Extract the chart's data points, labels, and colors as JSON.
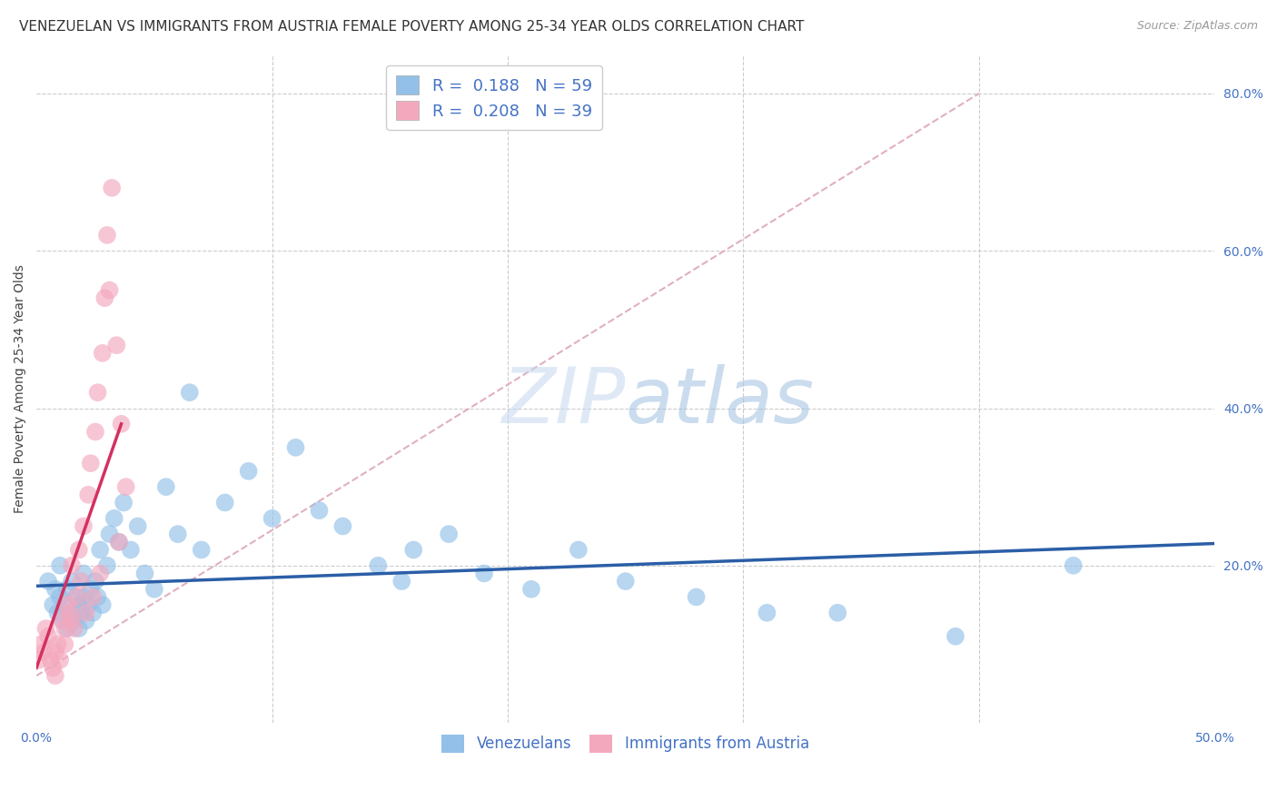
{
  "title": "VENEZUELAN VS IMMIGRANTS FROM AUSTRIA FEMALE POVERTY AMONG 25-34 YEAR OLDS CORRELATION CHART",
  "source": "Source: ZipAtlas.com",
  "ylabel": "Female Poverty Among 25-34 Year Olds",
  "xlim": [
    0.0,
    0.5
  ],
  "ylim": [
    0.0,
    0.85
  ],
  "y_ticks_right": [
    0.0,
    0.2,
    0.4,
    0.6,
    0.8
  ],
  "y_tick_labels_right": [
    "",
    "20.0%",
    "40.0%",
    "60.0%",
    "80.0%"
  ],
  "blue_R": "0.188",
  "blue_N": "59",
  "pink_R": "0.208",
  "pink_N": "39",
  "blue_color": "#92C0E8",
  "pink_color": "#F4A8BE",
  "blue_line_color": "#2B5EA7",
  "pink_line_color": "#D43060",
  "pink_dash_color": "#E8A0B8",
  "blue_scatter_x": [
    0.005,
    0.007,
    0.008,
    0.009,
    0.01,
    0.01,
    0.011,
    0.012,
    0.013,
    0.013,
    0.015,
    0.015,
    0.016,
    0.017,
    0.018,
    0.018,
    0.019,
    0.02,
    0.02,
    0.021,
    0.022,
    0.023,
    0.024,
    0.025,
    0.026,
    0.027,
    0.028,
    0.03,
    0.031,
    0.033,
    0.035,
    0.037,
    0.04,
    0.043,
    0.046,
    0.05,
    0.055,
    0.06,
    0.065,
    0.07,
    0.08,
    0.09,
    0.1,
    0.11,
    0.12,
    0.13,
    0.145,
    0.155,
    0.16,
    0.175,
    0.19,
    0.21,
    0.23,
    0.25,
    0.28,
    0.31,
    0.34,
    0.39,
    0.44
  ],
  "blue_scatter_y": [
    0.18,
    0.15,
    0.17,
    0.14,
    0.16,
    0.2,
    0.13,
    0.15,
    0.17,
    0.12,
    0.14,
    0.18,
    0.13,
    0.16,
    0.12,
    0.15,
    0.14,
    0.16,
    0.19,
    0.13,
    0.15,
    0.17,
    0.14,
    0.18,
    0.16,
    0.22,
    0.15,
    0.2,
    0.24,
    0.26,
    0.23,
    0.28,
    0.22,
    0.25,
    0.19,
    0.17,
    0.3,
    0.24,
    0.42,
    0.22,
    0.28,
    0.32,
    0.26,
    0.35,
    0.27,
    0.25,
    0.2,
    0.18,
    0.22,
    0.24,
    0.19,
    0.17,
    0.22,
    0.18,
    0.16,
    0.14,
    0.14,
    0.11,
    0.2
  ],
  "pink_scatter_x": [
    0.001,
    0.002,
    0.003,
    0.004,
    0.005,
    0.006,
    0.007,
    0.008,
    0.008,
    0.009,
    0.01,
    0.011,
    0.012,
    0.012,
    0.013,
    0.014,
    0.015,
    0.015,
    0.016,
    0.017,
    0.018,
    0.019,
    0.02,
    0.021,
    0.022,
    0.023,
    0.024,
    0.025,
    0.026,
    0.027,
    0.028,
    0.029,
    0.03,
    0.031,
    0.032,
    0.034,
    0.035,
    0.036,
    0.038
  ],
  "pink_scatter_y": [
    0.08,
    0.1,
    0.09,
    0.12,
    0.11,
    0.08,
    0.07,
    0.06,
    0.09,
    0.1,
    0.08,
    0.13,
    0.1,
    0.12,
    0.15,
    0.14,
    0.13,
    0.2,
    0.12,
    0.16,
    0.22,
    0.18,
    0.25,
    0.14,
    0.29,
    0.33,
    0.16,
    0.37,
    0.42,
    0.19,
    0.47,
    0.54,
    0.62,
    0.55,
    0.68,
    0.48,
    0.23,
    0.38,
    0.3
  ],
  "legend_label_blue": "Venezuelans",
  "legend_label_pink": "Immigrants from Austria",
  "title_fontsize": 11,
  "axis_label_fontsize": 10,
  "tick_fontsize": 10
}
